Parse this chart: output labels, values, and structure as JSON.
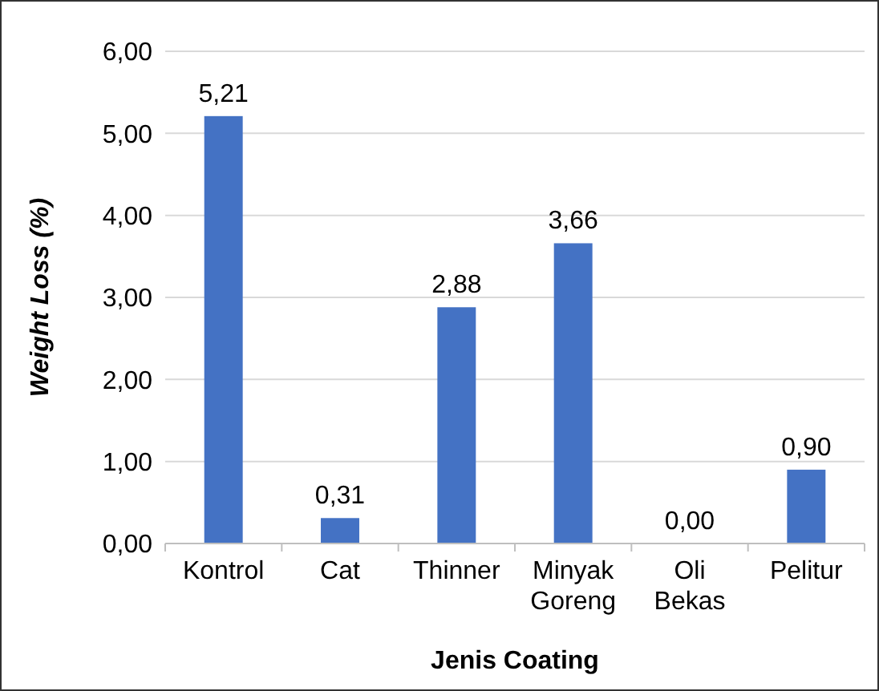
{
  "chart_data": {
    "type": "bar",
    "xlabel": "Jenis Coating",
    "ylabel": "Weight Loss (%)",
    "categories": [
      "Kontrol",
      "Cat",
      "Thinner",
      "Minyak Goreng",
      "Oli Bekas",
      "Pelitur"
    ],
    "values": [
      5.21,
      0.31,
      2.88,
      3.66,
      0.0,
      0.9
    ],
    "value_labels": [
      "5,21",
      "0,31",
      "2,88",
      "3,66",
      "0,00",
      "0,90"
    ],
    "color": "#4472c4",
    "ylim": [
      0,
      6
    ],
    "yticks": [
      {
        "value": 0,
        "label": "0,00"
      },
      {
        "value": 1,
        "label": "1,00"
      },
      {
        "value": 2,
        "label": "2,00"
      },
      {
        "value": 3,
        "label": "3,00"
      },
      {
        "value": 4,
        "label": "4,00"
      },
      {
        "value": 5,
        "label": "5,00"
      },
      {
        "value": 6,
        "label": "6,00"
      }
    ],
    "grid": "y"
  }
}
